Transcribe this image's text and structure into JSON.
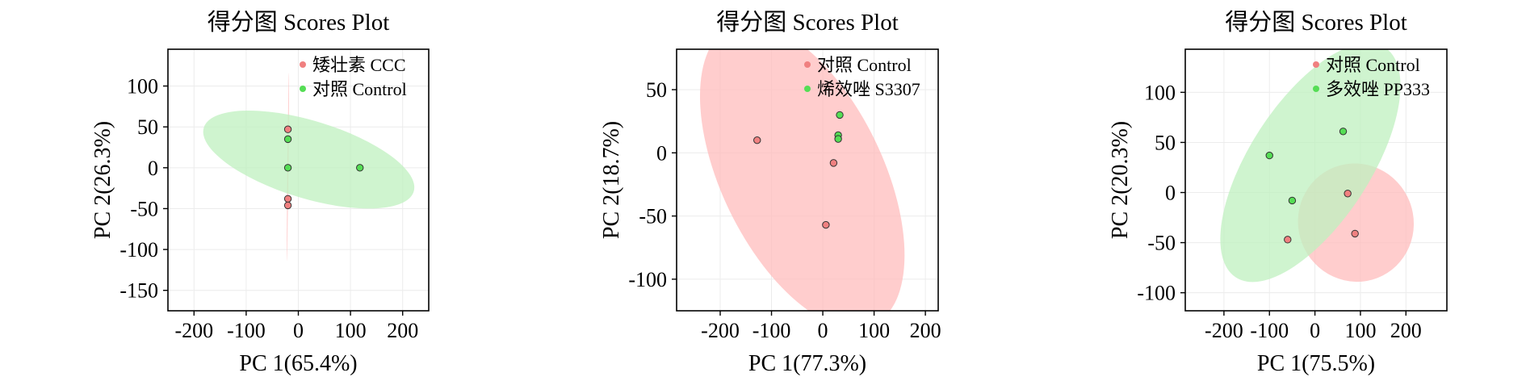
{
  "chart_data": [
    {
      "type": "scatter",
      "title": "得分图 Scores Plot",
      "xlabel": "PC 1(65.4%)",
      "ylabel": "PC 2(26.3%)",
      "xlim": [
        -250,
        250
      ],
      "ylim": [
        -175,
        145
      ],
      "xticks": [
        -200,
        -100,
        0,
        100,
        200
      ],
      "yticks": [
        -150,
        -100,
        -50,
        0,
        50,
        100
      ],
      "grid": true,
      "legend_position": "top-right",
      "series": [
        {
          "name": "矮壮素 CCC",
          "color": "#f08080",
          "ellipse_color": "#ffbcbc",
          "points": [
            [
              -20,
              47
            ],
            [
              -20,
              -38
            ],
            [
              -20,
              -46
            ]
          ],
          "ellipse": {
            "center": [
              -20,
              1
            ],
            "semi_axis_a": 115,
            "semi_axis_b": 1,
            "angle_deg": 89
          }
        },
        {
          "name": "对照 Control",
          "color": "#55dd55",
          "ellipse_color": "#bff0bf",
          "points": [
            [
              -20,
              35
            ],
            [
              -20,
              0
            ],
            [
              118,
              0
            ]
          ],
          "ellipse": {
            "center": [
              20,
              10
            ],
            "semi_axis_a": 205,
            "semi_axis_b": 48,
            "angle_deg": -11
          }
        }
      ]
    },
    {
      "type": "scatter",
      "title": "得分图 Scores Plot",
      "xlabel": "PC 1(77.3%)",
      "ylabel": "PC 2(18.7%)",
      "xlim": [
        -285,
        225
      ],
      "ylim": [
        -125,
        82
      ],
      "xticks": [
        -200,
        -100,
        0,
        100,
        200
      ],
      "yticks": [
        -100,
        -50,
        0,
        50
      ],
      "grid": true,
      "legend_position": "top-right",
      "series": [
        {
          "name": "对照 Control",
          "color": "#f08080",
          "ellipse_color": "#ffbcbc",
          "points": [
            [
              -128,
              10
            ],
            [
              21,
              -8
            ],
            [
              6,
              -57
            ]
          ],
          "ellipse": {
            "center": [
              -40,
              -18
            ],
            "semi_axis_a": 183,
            "semi_axis_b": 79,
            "angle_deg": -40
          }
        },
        {
          "name": "烯效唑 S3307",
          "color": "#55dd55",
          "ellipse_color": "#bff0bf",
          "points": [
            [
              33,
              30
            ],
            [
              30,
              14
            ],
            [
              30,
              11
            ]
          ],
          "ellipse": null
        }
      ]
    },
    {
      "type": "scatter",
      "title": "得分图 Scores Plot",
      "xlabel": "PC 1(75.5%)",
      "ylabel": "PC 2(20.3%)",
      "xlim": [
        -285,
        290
      ],
      "ylim": [
        -118,
        143
      ],
      "xticks": [
        -200,
        -100,
        0,
        100,
        200
      ],
      "yticks": [
        -100,
        -50,
        0,
        50,
        100
      ],
      "grid": true,
      "legend_position": "top-right",
      "series": [
        {
          "name": "对照 Control",
          "color": "#f08080",
          "ellipse_color": "#ffbcbc",
          "points": [
            [
              72,
              -1
            ],
            [
              -60,
              -47
            ],
            [
              88,
              -41
            ]
          ],
          "ellipse": {
            "center": [
              90,
              -30
            ],
            "semi_axis_a": 120,
            "semi_axis_b": 60,
            "angle_deg": 10
          }
        },
        {
          "name": "多效唑 PP333",
          "color": "#55dd55",
          "ellipse_color": "#bff0bf",
          "points": [
            [
              -100,
              37
            ],
            [
              62,
              61
            ],
            [
              -50,
              -8
            ]
          ],
          "ellipse": {
            "center": [
              -10,
              30
            ],
            "semi_axis_a": 200,
            "semi_axis_b": 70,
            "angle_deg": 35
          }
        }
      ]
    }
  ]
}
